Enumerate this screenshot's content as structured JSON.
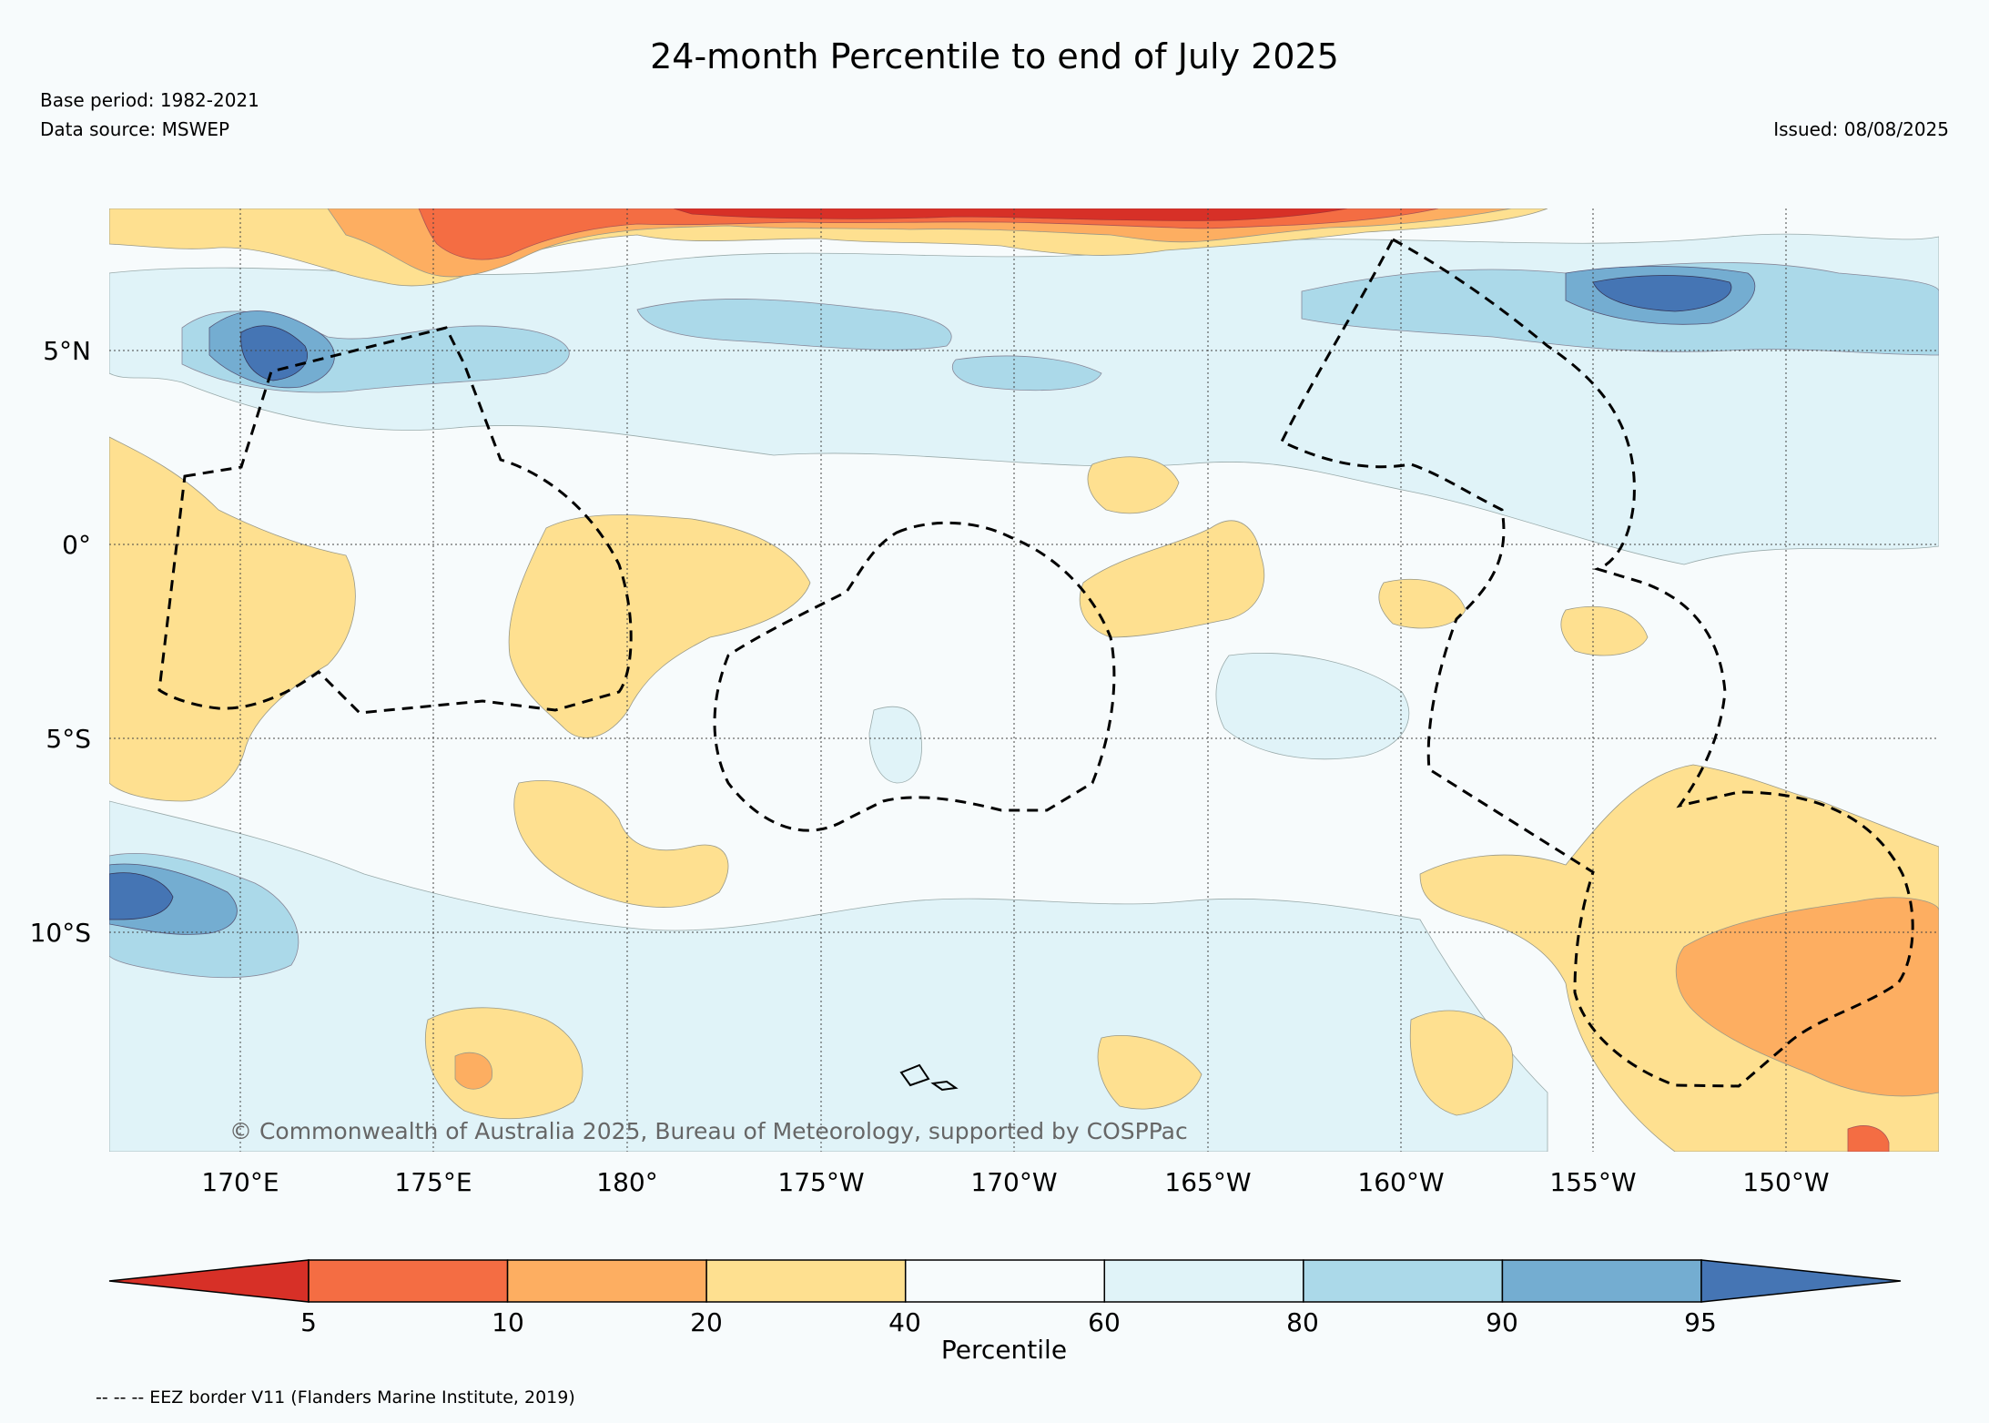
{
  "header": {
    "title": "24-month Percentile to end of July 2025",
    "base_period": "Base period: 1982-2021",
    "data_source": "Data source: MSWEP",
    "issued": "Issued: 08/08/2025"
  },
  "map": {
    "lat_labels": [
      "5°N",
      "0°",
      "5°S",
      "10°S"
    ],
    "lon_labels": [
      "170°E",
      "175°E",
      "180°",
      "175°W",
      "170°W",
      "165°W",
      "160°W",
      "155°W",
      "150°W"
    ],
    "copyright": "© Commonwealth of Australia 2025, Bureau of Meteorology, supported by COSPPac",
    "colors": {
      "p0_5": "#d73027",
      "p5_10": "#f46d43",
      "p10_20": "#fdae61",
      "p20_40": "#fee090",
      "p40_60": "#f7fbfc",
      "p60_80": "#e0f3f8",
      "p80_90": "#abd9e9",
      "p90_95": "#74add1",
      "p95_100": "#4575b4"
    }
  },
  "colorbar": {
    "label": "Percentile",
    "ticks": [
      "5",
      "10",
      "20",
      "40",
      "60",
      "80",
      "90",
      "95"
    ],
    "colors": [
      "#d73027",
      "#f46d43",
      "#fdae61",
      "#fee090",
      "#f7fbfc",
      "#e0f3f8",
      "#abd9e9",
      "#74add1",
      "#4575b4"
    ]
  },
  "footer": {
    "eez_note": "-- -- -- EEZ border V11 (Flanders Marine Institute, 2019)"
  }
}
